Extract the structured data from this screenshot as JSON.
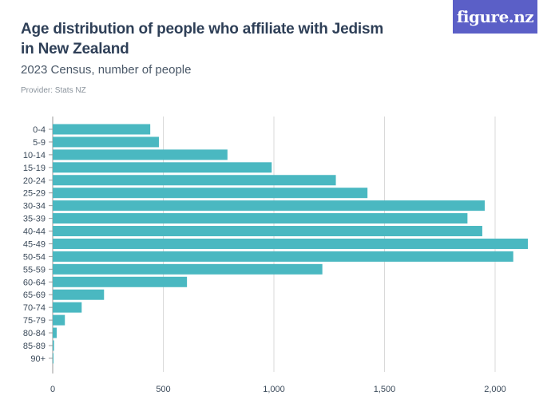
{
  "header": {
    "title": "Age distribution of people who affiliate with Jedism in New Zealand",
    "subtitle": "2023 Census, number of people",
    "provider": "Provider: Stats NZ",
    "logo_text": "figure.nz"
  },
  "colors": {
    "bar": "#4ab8c1",
    "grid": "#d9d9d9",
    "logo_bg": "#5b5fc7"
  },
  "chart_data": {
    "type": "bar",
    "orientation": "horizontal",
    "title": "Age distribution of people who affiliate with Jedism in New Zealand",
    "subtitle": "2023 Census, number of people",
    "categories": [
      "0-4",
      "5-9",
      "10-14",
      "15-19",
      "20-24",
      "25-29",
      "30-34",
      "35-39",
      "40-44",
      "45-49",
      "50-54",
      "55-59",
      "60-64",
      "65-69",
      "70-74",
      "75-79",
      "80-84",
      "85-89",
      "90+"
    ],
    "values": [
      441,
      480,
      790,
      990,
      1280,
      1423,
      1953,
      1875,
      1942,
      2148,
      2082,
      1219,
      607,
      232,
      131,
      55,
      18,
      6,
      3
    ],
    "xlim": [
      0,
      2200
    ],
    "xticks": [
      0,
      500,
      1000,
      1500,
      2000
    ],
    "xtick_labels": [
      "0",
      "500",
      "1,000",
      "1,500",
      "2,000"
    ],
    "grid": true,
    "xlabel": "",
    "ylabel": ""
  }
}
